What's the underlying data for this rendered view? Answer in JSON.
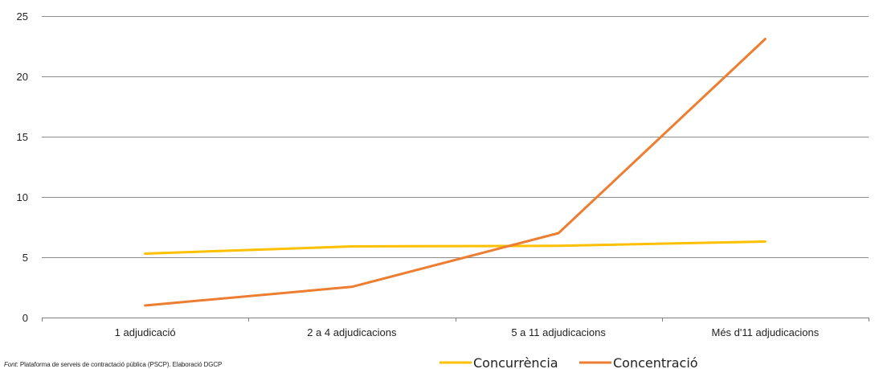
{
  "chart_data": {
    "type": "line",
    "title": "",
    "xlabel": "",
    "ylabel": "",
    "categories": [
      "1 adjudicació",
      "2 a 4 adjudicacions",
      "5 a 11 adjudicacions",
      "Més d'11 adjudicacions"
    ],
    "ylim": [
      0,
      25
    ],
    "yticks": [
      0,
      5,
      10,
      15,
      20,
      25
    ],
    "grid": true,
    "legend_position": "bottom",
    "series": [
      {
        "name": "Concurrència",
        "color": "#FFC000",
        "values": [
          5.3,
          5.9,
          5.95,
          6.3
        ]
      },
      {
        "name": "Concentració",
        "color": "#ED7D31",
        "values": [
          1.0,
          2.55,
          7.0,
          23.1
        ]
      }
    ]
  },
  "source": {
    "label": "Font",
    "text": ": Plataforma de serveis de contractació pública (PSCP).  Elaboració DGCP"
  }
}
